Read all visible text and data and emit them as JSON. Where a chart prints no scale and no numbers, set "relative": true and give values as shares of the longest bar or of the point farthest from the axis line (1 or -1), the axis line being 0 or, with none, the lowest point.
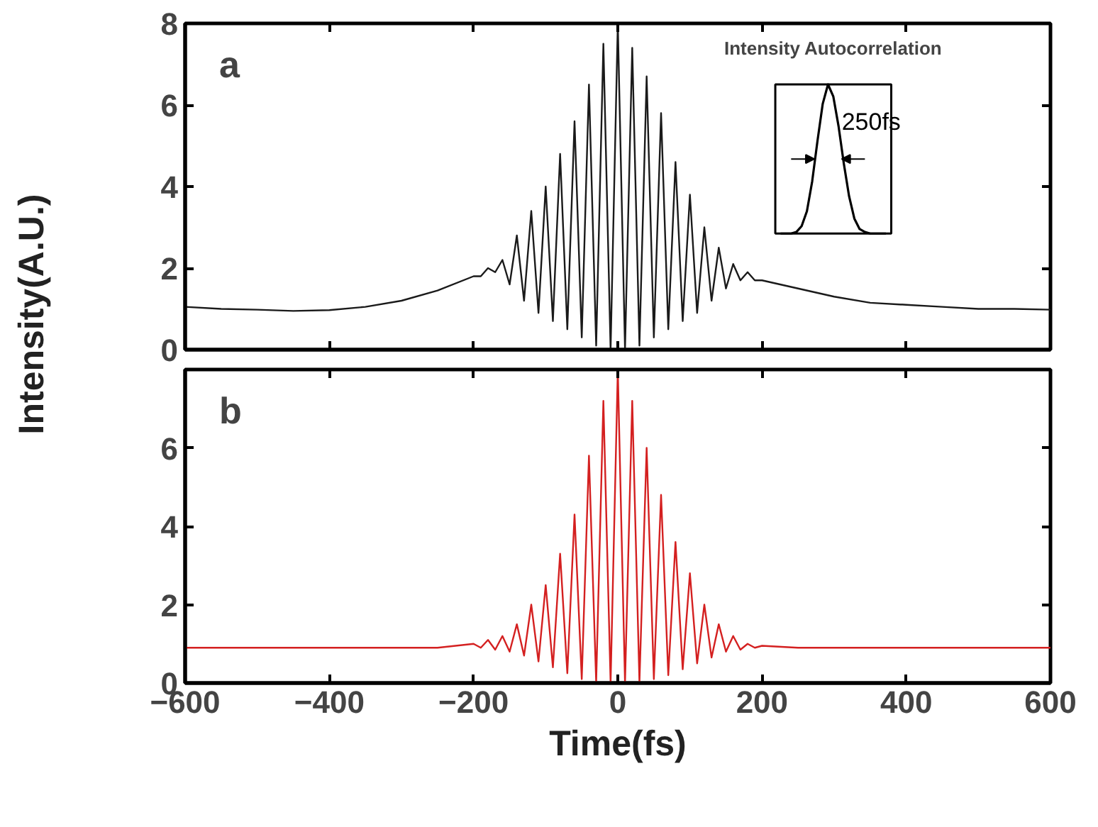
{
  "chart_data": [
    {
      "type": "line",
      "ylabel": "Intensity(A.U.)",
      "annotations": [
        "a"
      ],
      "x": [
        -600,
        -550,
        -500,
        -450,
        -400,
        -350,
        -300,
        -250,
        -200,
        -190,
        -180,
        -170,
        -160,
        -150,
        -140,
        -130,
        -120,
        -110,
        -100,
        -90,
        -80,
        -70,
        -60,
        -50,
        -40,
        -30,
        -20,
        -10,
        0,
        10,
        20,
        30,
        40,
        50,
        60,
        70,
        80,
        90,
        100,
        110,
        120,
        130,
        140,
        150,
        160,
        170,
        180,
        190,
        200,
        250,
        300,
        350,
        400,
        450,
        500,
        550,
        600
      ],
      "series": [
        {
          "color": "#1a1a1a",
          "values": [
            1.05,
            1.0,
            0.98,
            0.95,
            0.97,
            1.05,
            1.2,
            1.45,
            1.8,
            1.8,
            2.0,
            1.9,
            2.2,
            1.6,
            2.8,
            1.2,
            3.4,
            0.9,
            4.0,
            0.7,
            4.8,
            0.5,
            5.6,
            0.3,
            6.5,
            0.1,
            7.5,
            0,
            8.0,
            0,
            7.4,
            0.1,
            6.7,
            0.3,
            5.8,
            0.5,
            4.6,
            0.7,
            3.8,
            0.9,
            3.0,
            1.2,
            2.5,
            1.5,
            2.1,
            1.7,
            1.9,
            1.7,
            1.7,
            1.5,
            1.3,
            1.15,
            1.1,
            1.05,
            1.0,
            1.0,
            0.98
          ]
        }
      ],
      "xlim": [
        -600,
        600
      ],
      "ylim": [
        0,
        8
      ],
      "xticks": [
        -600,
        -400,
        -200,
        0,
        200,
        400,
        600
      ],
      "yticks": [
        0,
        2,
        4,
        6,
        8
      ],
      "tick_labels": "y",
      "line_style": "solid",
      "marker": "none"
    },
    {
      "type": "line",
      "xlabel": "Time(fs)",
      "annotations": [
        "b"
      ],
      "x": [
        -600,
        -550,
        -500,
        -450,
        -400,
        -350,
        -300,
        -250,
        -200,
        -190,
        -180,
        -170,
        -160,
        -150,
        -140,
        -130,
        -120,
        -110,
        -100,
        -90,
        -80,
        -70,
        -60,
        -50,
        -40,
        -30,
        -20,
        -10,
        0,
        10,
        20,
        30,
        40,
        50,
        60,
        70,
        80,
        90,
        100,
        110,
        120,
        130,
        140,
        150,
        160,
        170,
        180,
        190,
        200,
        250,
        300,
        350,
        400,
        450,
        500,
        550,
        600
      ],
      "series": [
        {
          "color": "#d42020",
          "values": [
            0.9,
            0.9,
            0.9,
            0.9,
            0.9,
            0.9,
            0.9,
            0.9,
            1.0,
            0.9,
            1.1,
            0.85,
            1.2,
            0.8,
            1.5,
            0.7,
            2.0,
            0.55,
            2.5,
            0.4,
            3.3,
            0.25,
            4.3,
            0.1,
            5.8,
            0.02,
            7.2,
            0,
            8.0,
            0,
            7.2,
            0.02,
            6.0,
            0.1,
            4.8,
            0.2,
            3.6,
            0.35,
            2.8,
            0.5,
            2.0,
            0.65,
            1.5,
            0.8,
            1.2,
            0.85,
            1.0,
            0.9,
            0.95,
            0.9,
            0.9,
            0.9,
            0.9,
            0.9,
            0.9,
            0.9,
            0.9
          ]
        }
      ],
      "xlim": [
        -600,
        600
      ],
      "ylim": [
        0,
        8
      ],
      "xticks": [
        -600,
        -400,
        -200,
        0,
        200,
        400,
        600
      ],
      "yticks": [
        0,
        2,
        4,
        6
      ],
      "line_style": "solid",
      "marker": "none"
    },
    {
      "type": "line",
      "title": "Intensity Autocorrelation",
      "relative": true,
      "annotations": [
        {
          "text": "250fs"
        }
      ],
      "categories": [
        null,
        null,
        null,
        null,
        null,
        null,
        null,
        null,
        null,
        null,
        null,
        null,
        null,
        null,
        null,
        null,
        null,
        null,
        null,
        null,
        null
      ],
      "series": [
        {
          "color": "#000000",
          "values": [
            0,
            0,
            0,
            0.01,
            0.05,
            0.15,
            0.35,
            0.62,
            0.87,
            1.0,
            0.92,
            0.72,
            0.47,
            0.25,
            0.1,
            0.03,
            0.01,
            0,
            0,
            0,
            0
          ]
        }
      ],
      "line_style": "solid",
      "marker": "none"
    }
  ]
}
